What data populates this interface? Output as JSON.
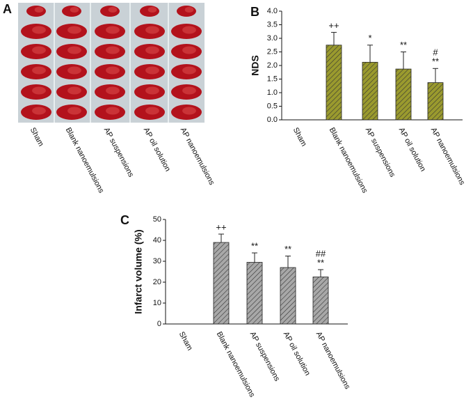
{
  "image_panel": {
    "label": "A",
    "columns": [
      "Sham",
      "Blank nanoemulsions",
      "AP suspensions",
      "AP oil solution",
      "AP nanoemulsions"
    ]
  },
  "chart_data": [
    {
      "type": "bar",
      "panel_label": "B",
      "y_label": "NDS",
      "categories": [
        "Sham",
        "Blank nanoemulsions",
        "AP suspensions",
        "AP oil solution",
        "AP nanoemulsions"
      ],
      "values": [
        0,
        2.75,
        2.12,
        1.87,
        1.37
      ],
      "errors": [
        0,
        0.47,
        0.63,
        0.63,
        0.52
      ],
      "annotations": [
        null,
        [
          "++"
        ],
        [
          "*"
        ],
        [
          "**"
        ],
        [
          "#",
          "**"
        ]
      ],
      "color": "#9a9a2e",
      "hatch": true,
      "ylim": [
        0,
        4
      ],
      "yticks": [
        {
          "value": 0,
          "label": "0.0"
        },
        {
          "value": 0.5,
          "label": "0.5"
        },
        {
          "value": 1,
          "label": "1.0"
        },
        {
          "value": 1.5,
          "label": "1.5"
        },
        {
          "value": 2,
          "label": "2.0"
        },
        {
          "value": 2.5,
          "label": "2.5"
        },
        {
          "value": 3,
          "label": "3.0"
        },
        {
          "value": 3.5,
          "label": "3.5"
        },
        {
          "value": 4,
          "label": "4.0"
        }
      ]
    },
    {
      "type": "bar",
      "panel_label": "C",
      "y_label": "Infarct volume (%)",
      "categories": [
        "Sham",
        "Blank nanoemulsions",
        "AP suspensions",
        "AP oil solution",
        "AP nanoemulsions"
      ],
      "values": [
        0,
        39,
        29.5,
        27,
        22.5
      ],
      "errors": [
        0,
        4,
        4.5,
        5.5,
        3.5
      ],
      "annotations": [
        null,
        [
          "++"
        ],
        [
          "**"
        ],
        [
          "**"
        ],
        [
          "##",
          "**"
        ]
      ],
      "color": "#a8a8a8",
      "hatch": true,
      "ylim": [
        0,
        50
      ],
      "yticks": [
        0,
        10,
        20,
        30,
        40,
        50
      ]
    }
  ]
}
